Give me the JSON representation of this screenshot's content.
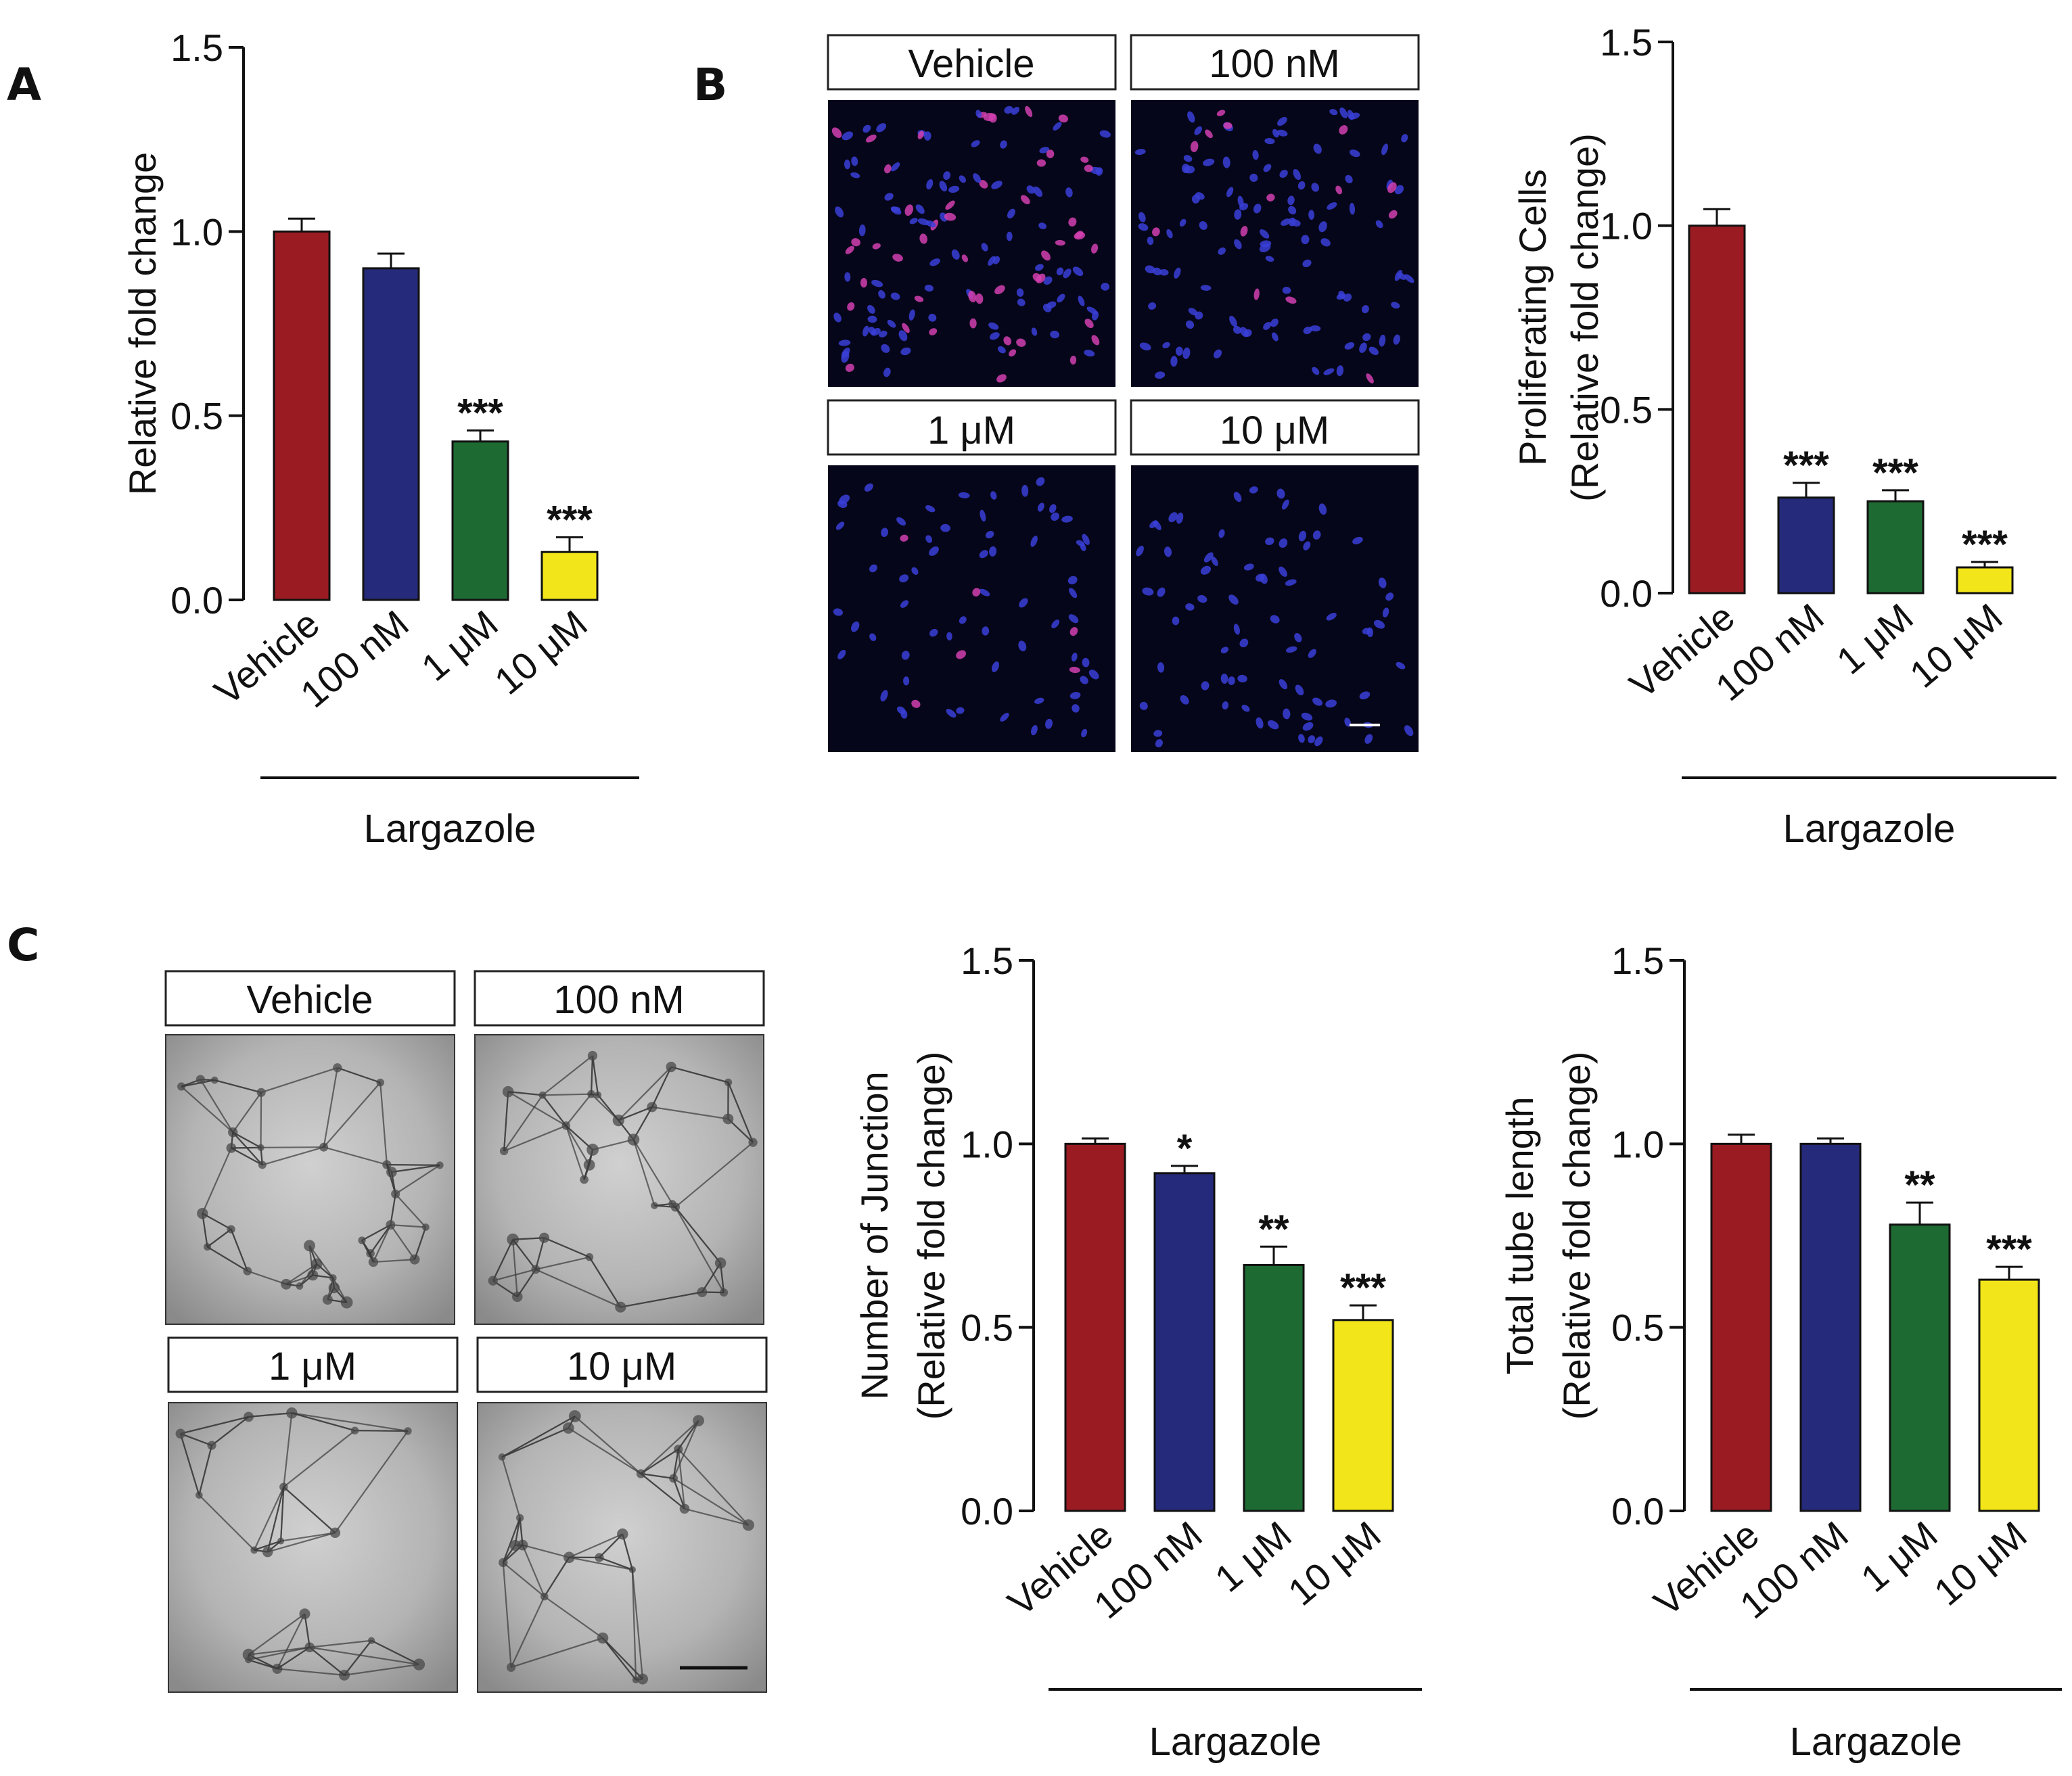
{
  "colors": {
    "vehicle": "#9b1b22",
    "nm100": "#262a7a",
    "um1": "#1e6a33",
    "um10": "#f2e61a"
  },
  "panels": {
    "a": {
      "letter": "A"
    },
    "b": {
      "letter": "B"
    },
    "c": {
      "letter": "C"
    }
  },
  "images": {
    "b": {
      "labels": [
        "Vehicle",
        "100 nM",
        "1 μM",
        "10 μM"
      ]
    },
    "c": {
      "labels": [
        "Vehicle",
        "100 nM",
        "1 μM",
        "10 μM"
      ]
    }
  },
  "chart_data": [
    {
      "id": "A",
      "type": "bar",
      "categories": [
        "Vehicle",
        "100 nM",
        "1 μM",
        "10 μM"
      ],
      "values": [
        1.0,
        0.9,
        0.43,
        0.13
      ],
      "errors": [
        0.035,
        0.04,
        0.03,
        0.04
      ],
      "significance": [
        "",
        "",
        "***",
        "***"
      ],
      "title": "",
      "ylabel_lines": [
        "Relative fold change"
      ],
      "xlabel": "Largazole",
      "ylim": [
        0,
        1.5
      ],
      "yticks": [
        "0.0",
        "0.5",
        "1.0",
        "1.5"
      ]
    },
    {
      "id": "B",
      "type": "bar",
      "categories": [
        "Vehicle",
        "100 nM",
        "1 μM",
        "10 μM"
      ],
      "values": [
        1.0,
        0.26,
        0.25,
        0.07
      ],
      "errors": [
        0.045,
        0.04,
        0.03,
        0.015
      ],
      "significance": [
        "",
        "***",
        "***",
        "***"
      ],
      "title": "",
      "ylabel_lines": [
        "Proliferating Cells",
        "(Relative fold change)"
      ],
      "xlabel": "Largazole",
      "ylim": [
        0,
        1.5
      ],
      "yticks": [
        "0.0",
        "0.5",
        "1.0",
        "1.5"
      ]
    },
    {
      "id": "C1",
      "type": "bar",
      "categories": [
        "Vehicle",
        "100 nM",
        "1 μM",
        "10 μM"
      ],
      "values": [
        1.0,
        0.92,
        0.67,
        0.52
      ],
      "errors": [
        0.015,
        0.02,
        0.05,
        0.04
      ],
      "significance": [
        "",
        "*",
        "**",
        "***"
      ],
      "title": "",
      "ylabel_lines": [
        "Number of Junction",
        "(Relative fold change)"
      ],
      "xlabel": "Largazole",
      "ylim": [
        0,
        1.5
      ],
      "yticks": [
        "0.0",
        "0.5",
        "1.0",
        "1.5"
      ]
    },
    {
      "id": "C2",
      "type": "bar",
      "categories": [
        "Vehicle",
        "100 nM",
        "1 μM",
        "10 μM"
      ],
      "values": [
        1.0,
        1.0,
        0.78,
        0.63
      ],
      "errors": [
        0.025,
        0.015,
        0.06,
        0.035
      ],
      "significance": [
        "",
        "",
        "**",
        "***"
      ],
      "title": "",
      "ylabel_lines": [
        "Total tube length",
        "(Relative fold change)"
      ],
      "xlabel": "Largazole",
      "ylim": [
        0,
        1.5
      ],
      "yticks": [
        "0.0",
        "0.5",
        "1.0",
        "1.5"
      ]
    }
  ]
}
